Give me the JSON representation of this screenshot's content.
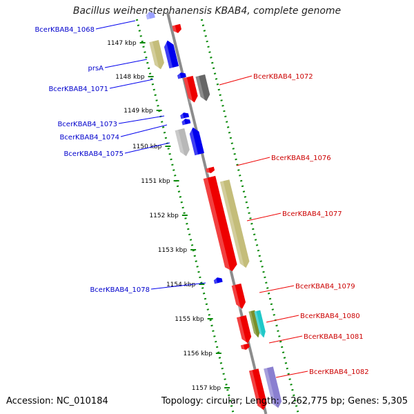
{
  "title": "Bacillus weihenstephanensis KBAB4, complete genome",
  "footer": {
    "accession": "Accession: NC_010184",
    "summary": "Topology: circular; Length: 5,262,775 bp; Genes: 5,305"
  },
  "colors": {
    "forward": "#ee0000",
    "reverse": "#0000ee",
    "tick": "#0a8a0a",
    "backbone": "#8c8c8c"
  },
  "ticks": [
    {
      "label": "1147 kbp"
    },
    {
      "label": "1148 kbp"
    },
    {
      "label": "1149 kbp"
    },
    {
      "label": "1150 kbp"
    },
    {
      "label": "1151 kbp"
    },
    {
      "label": "1152 kbp"
    },
    {
      "label": "1153 kbp"
    },
    {
      "label": "1154 kbp"
    },
    {
      "label": "1155 kbp"
    },
    {
      "label": "1156 kbp"
    },
    {
      "label": "1157 kbp"
    }
  ],
  "genes_left": [
    {
      "label": "BcerKBAB4_1068"
    },
    {
      "label": "prsA"
    },
    {
      "label": "BcerKBAB4_1071"
    },
    {
      "label": "BcerKBAB4_1073"
    },
    {
      "label": "BcerKBAB4_1074"
    },
    {
      "label": "BcerKBAB4_1075"
    },
    {
      "label": "BcerKBAB4_1078"
    }
  ],
  "genes_right": [
    {
      "label": "BcerKBAB4_1072"
    },
    {
      "label": "BcerKBAB4_1076"
    },
    {
      "label": "BcerKBAB4_1077"
    },
    {
      "label": "BcerKBAB4_1079"
    },
    {
      "label": "BcerKBAB4_1080"
    },
    {
      "label": "BcerKBAB4_1081"
    },
    {
      "label": "BcerKBAB4_1082"
    }
  ]
}
